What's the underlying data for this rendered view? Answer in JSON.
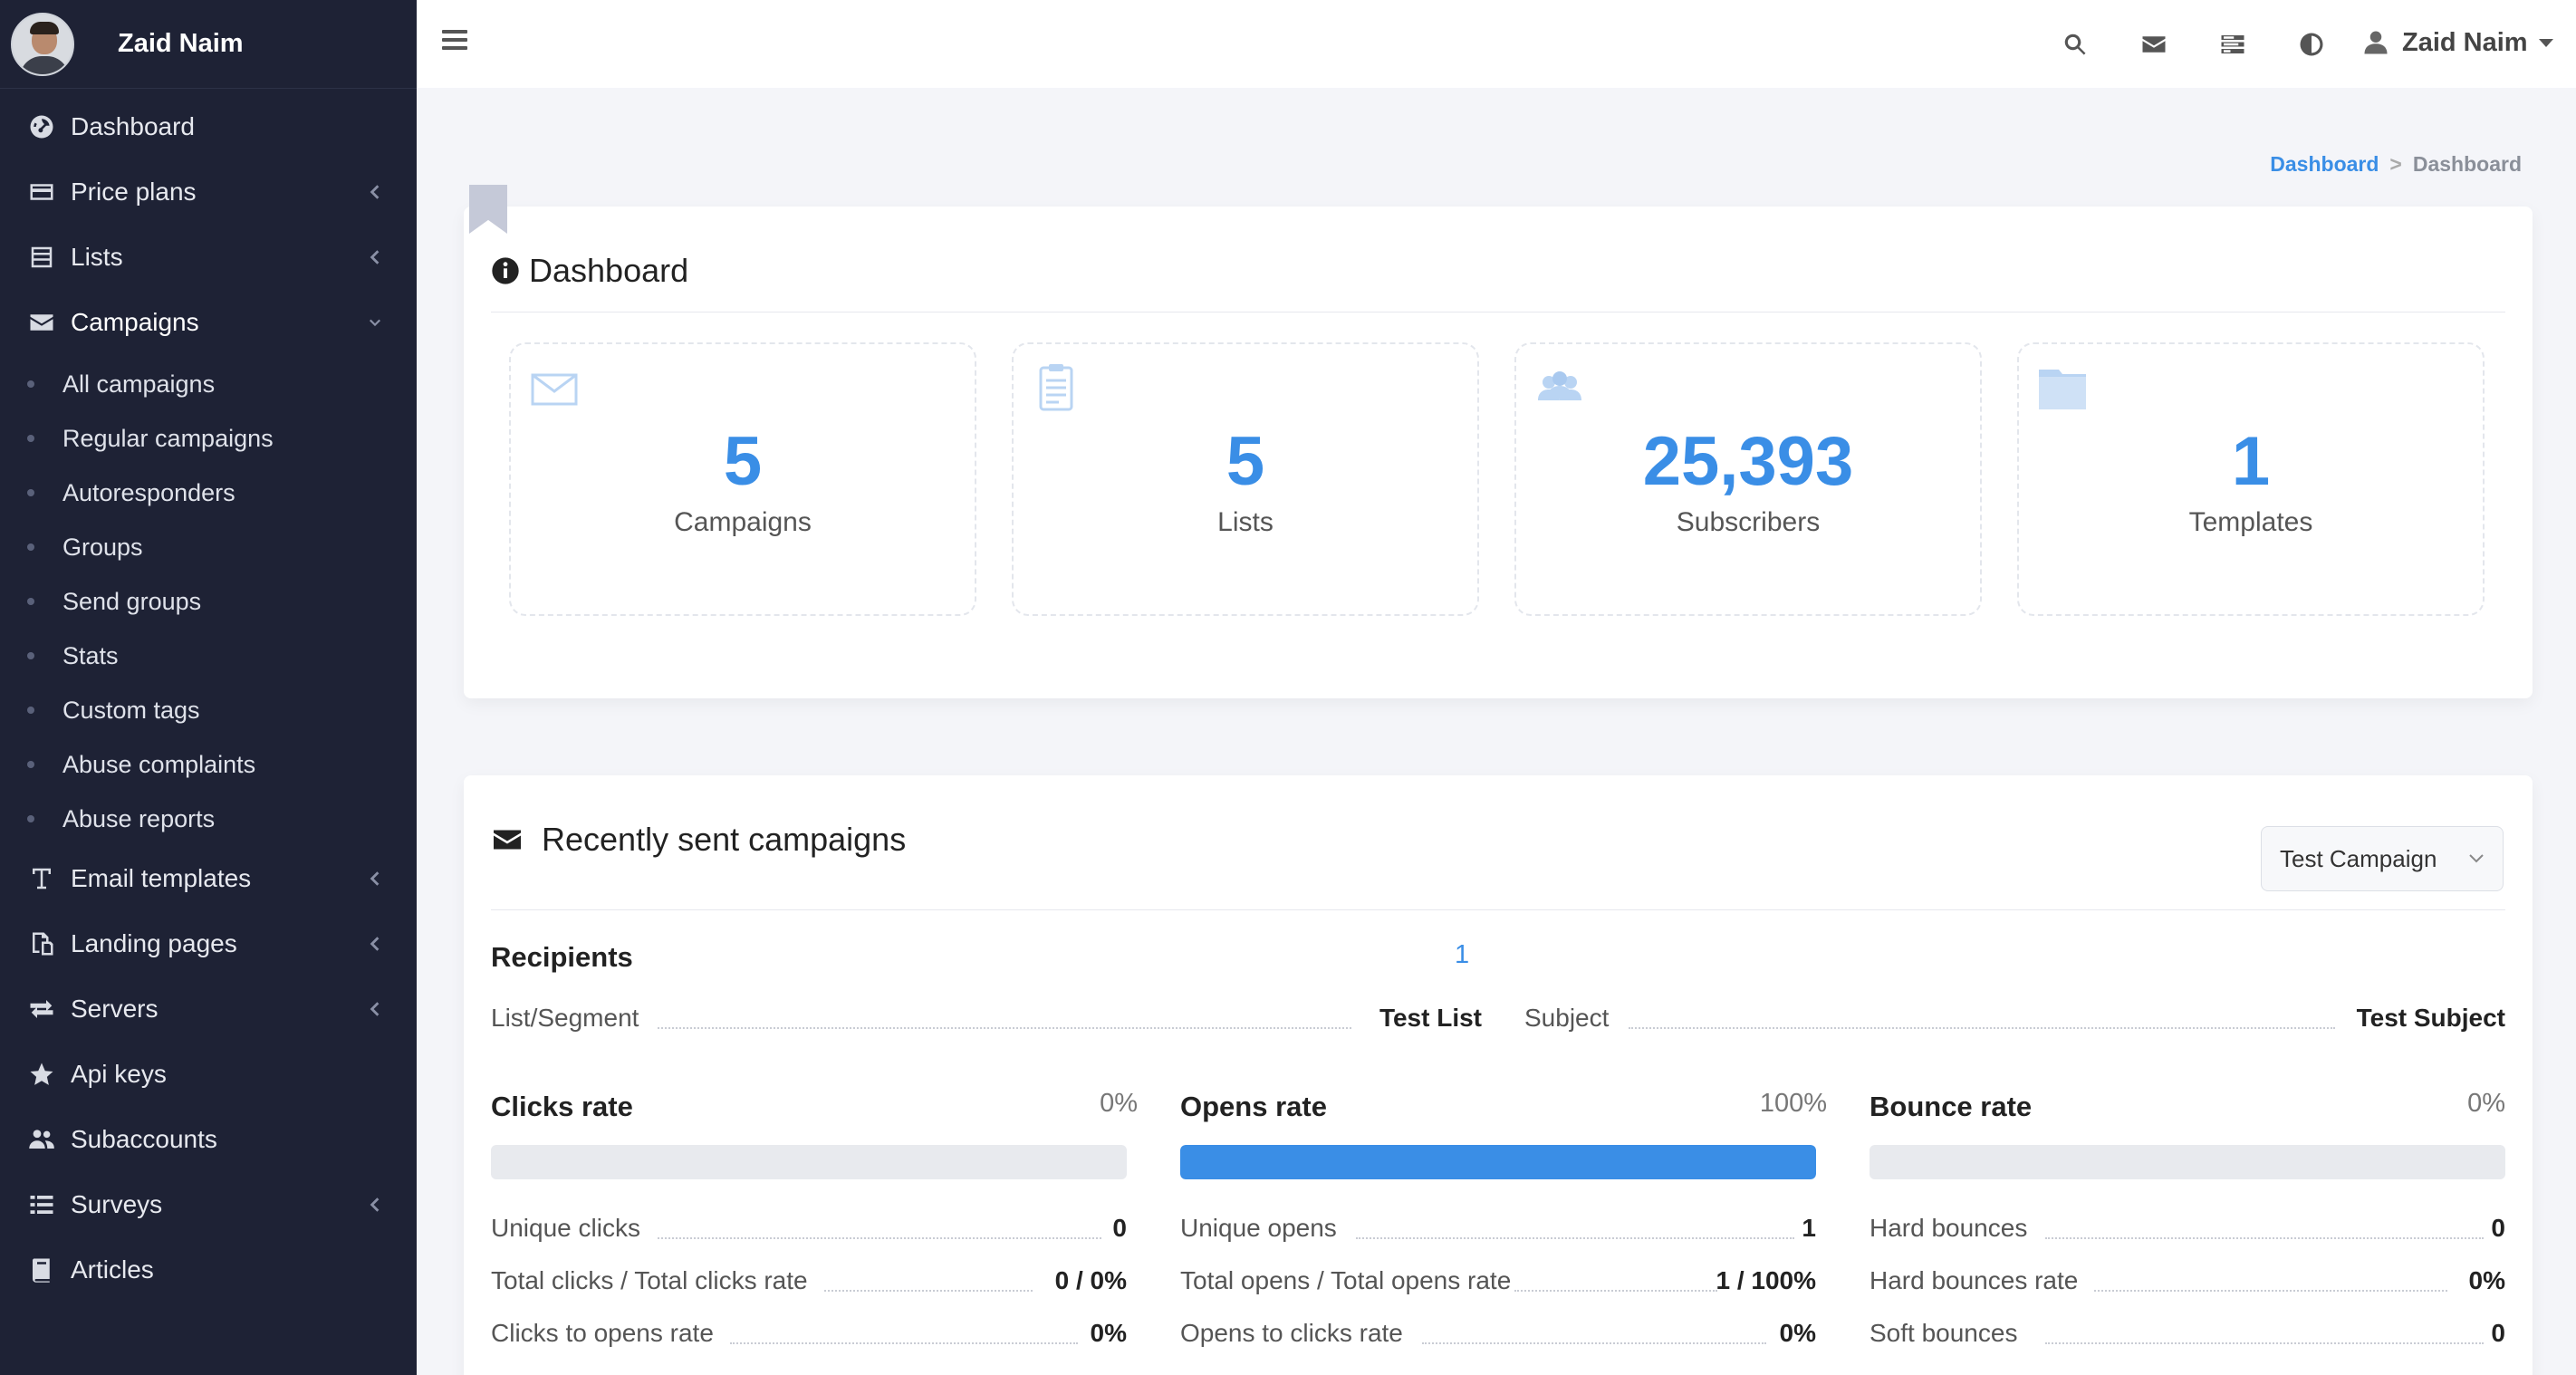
{
  "sidebar": {
    "username": "Zaid Naim",
    "items": [
      {
        "label": "Dashboard",
        "icon": "dashboard-icon"
      },
      {
        "label": "Price plans",
        "icon": "credit-card-icon"
      },
      {
        "label": "Lists",
        "icon": "list-icon"
      },
      {
        "label": "Campaigns",
        "icon": "envelope-icon"
      },
      {
        "label": "Email templates",
        "icon": "text-icon"
      },
      {
        "label": "Landing pages",
        "icon": "copy-icon"
      },
      {
        "label": "Servers",
        "icon": "exchange-icon"
      },
      {
        "label": "Api keys",
        "icon": "star-icon"
      },
      {
        "label": "Subaccounts",
        "icon": "users-icon"
      },
      {
        "label": "Surveys",
        "icon": "list-icon"
      },
      {
        "label": "Articles",
        "icon": "book-icon"
      }
    ],
    "campaign_subitems": [
      "All campaigns",
      "Regular campaigns",
      "Autoresponders",
      "Groups",
      "Send groups",
      "Stats",
      "Custom tags",
      "Abuse complaints",
      "Abuse reports"
    ]
  },
  "topbar": {
    "username": "Zaid Naim",
    "icons": [
      "search-icon",
      "envelope-icon",
      "tasks-icon",
      "contrast-icon",
      "user-icon"
    ]
  },
  "breadcrumb": {
    "link": "Dashboard",
    "separator": ">",
    "current": "Dashboard"
  },
  "dashboard": {
    "title": "Dashboard",
    "stats": [
      {
        "value": "5",
        "label": "Campaigns",
        "icon": "envelope-outline-icon"
      },
      {
        "value": "5",
        "label": "Lists",
        "icon": "clipboard-icon"
      },
      {
        "value": "25,393",
        "label": "Subscribers",
        "icon": "group-icon"
      },
      {
        "value": "1",
        "label": "Templates",
        "icon": "folder-icon"
      }
    ]
  },
  "recent": {
    "title": "Recently sent campaigns",
    "selected_campaign": "Test Campaign",
    "recipients_label": "Recipients",
    "recipients_value": "1",
    "list_segment_label": "List/Segment",
    "list_segment_value": "Test List",
    "subject_label": "Subject",
    "subject_value": "Test Subject",
    "clicks": {
      "title": "Clicks rate",
      "pct": "0%",
      "fill": 0,
      "rows": [
        {
          "label": "Unique clicks",
          "value": "0"
        },
        {
          "label": "Total clicks / Total clicks rate",
          "value": "0 / 0%"
        },
        {
          "label": "Clicks to opens rate",
          "value": "0%"
        }
      ]
    },
    "opens": {
      "title": "Opens rate",
      "pct": "100%",
      "fill": 1,
      "rows": [
        {
          "label": "Unique opens",
          "value": "1"
        },
        {
          "label": "Total opens / Total opens rate",
          "value": "1 / 100%"
        },
        {
          "label": "Opens to clicks rate",
          "value": "0%"
        }
      ]
    },
    "bounces": {
      "title": "Bounce rate",
      "pct": "0%",
      "fill": 0,
      "rows": [
        {
          "label": "Hard bounces",
          "value": "0"
        },
        {
          "label": "Hard bounces rate",
          "value": "0%"
        },
        {
          "label": "Soft bounces",
          "value": "0"
        }
      ]
    }
  },
  "colors": {
    "sidebar_bg": "#1e2235",
    "accent": "#3a8ee6",
    "page_bg": "#f4f5f9"
  }
}
